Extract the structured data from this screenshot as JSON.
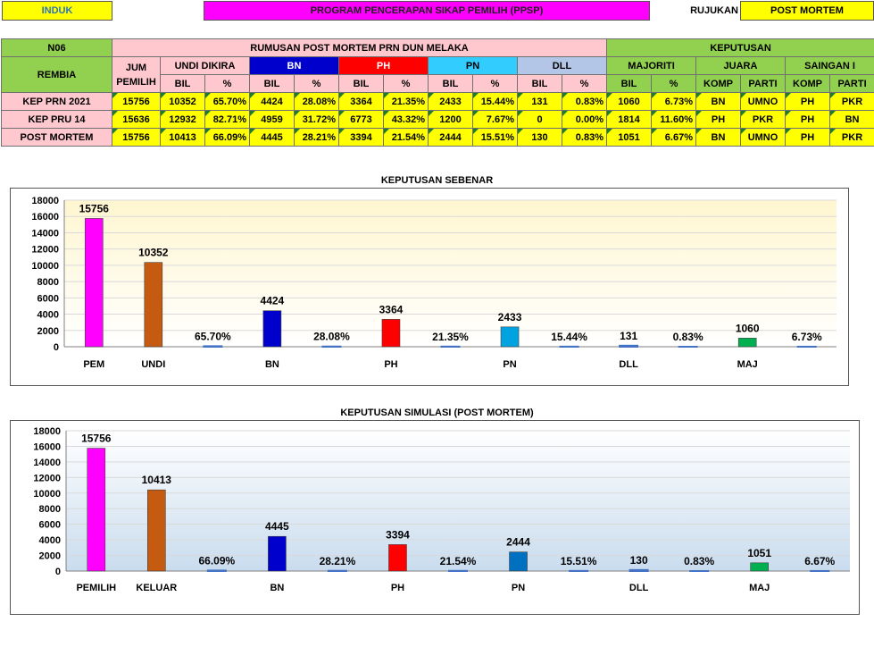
{
  "topbar": {
    "induk_label": "INDUK",
    "program_label": "PROGRAM PENCERAPAN SIKAP PEMILIH (PPSP)",
    "rujukan_label": "RUJUKAN",
    "rujukan_value": "POST MORTEM"
  },
  "table": {
    "code": "N06",
    "seat": "REMBIA",
    "main_header": "RUMUSAN POST MORTEM PRN DUN MELAKA",
    "keputusan_header": "KEPUTUSAN",
    "col_jum": "JUM PEMILIH",
    "col_undi": "UNDI DIKIRA",
    "col_bn": "BN",
    "col_ph": "PH",
    "col_pn": "PN",
    "col_dll": "DLL",
    "col_majoriti": "MAJORITI",
    "col_juara": "JUARA",
    "col_saingan": "SAINGAN I",
    "sub_bil": "BIL",
    "sub_pct": "%",
    "sub_komp": "KOMP",
    "sub_parti": "PARTI",
    "rows": [
      {
        "label": "KEP PRN 2021",
        "jum": "15756",
        "undi_bil": "10352",
        "undi_pct": "65.70%",
        "bn_bil": "4424",
        "bn_pct": "28.08%",
        "ph_bil": "3364",
        "ph_pct": "21.35%",
        "pn_bil": "2433",
        "pn_pct": "15.44%",
        "dll_bil": "131",
        "dll_pct": "0.83%",
        "maj_bil": "1060",
        "maj_pct": "6.73%",
        "juara_komp": "BN",
        "juara_parti": "UMNO",
        "saingan_komp": "PH",
        "saingan_parti": "PKR"
      },
      {
        "label": "KEP PRU 14",
        "jum": "15636",
        "undi_bil": "12932",
        "undi_pct": "82.71%",
        "bn_bil": "4959",
        "bn_pct": "31.72%",
        "ph_bil": "6773",
        "ph_pct": "43.32%",
        "pn_bil": "1200",
        "pn_pct": "7.67%",
        "dll_bil": "0",
        "dll_pct": "0.00%",
        "maj_bil": "1814",
        "maj_pct": "11.60%",
        "juara_komp": "PH",
        "juara_parti": "PKR",
        "saingan_komp": "PH",
        "saingan_parti": "BN"
      },
      {
        "label": "POST MORTEM",
        "jum": "15756",
        "undi_bil": "10413",
        "undi_pct": "66.09%",
        "bn_bil": "4445",
        "bn_pct": "28.21%",
        "ph_bil": "3394",
        "ph_pct": "21.54%",
        "pn_bil": "2444",
        "pn_pct": "15.51%",
        "dll_bil": "130",
        "dll_pct": "0.83%",
        "maj_bil": "1051",
        "maj_pct": "6.67%",
        "juara_komp": "BN",
        "juara_parti": "UMNO",
        "saingan_komp": "PH",
        "saingan_parti": "PKR"
      }
    ]
  },
  "colors": {
    "pemilih": "#ff00ff",
    "undi": "#c55a11",
    "bn": "#0000cc",
    "ph": "#ff0000",
    "pn": "#00a3e0",
    "maj": "#00b050",
    "pct_bar": "#4472c4",
    "chart1_bg_top": "#fff6d0",
    "chart2_bg_top": "#c9dcee"
  },
  "chart_data": [
    {
      "type": "bar",
      "title": "KEPUTUSAN SEBENAR",
      "ylim": [
        0,
        18000
      ],
      "yticks": [
        0,
        2000,
        4000,
        6000,
        8000,
        10000,
        12000,
        14000,
        16000,
        18000
      ],
      "grid": true,
      "categories": [
        "PEM",
        "UNDI",
        "",
        "BN",
        "",
        "PH",
        "",
        "PN",
        "",
        "DLL",
        "",
        "MAJ",
        ""
      ],
      "values": [
        15756,
        10352,
        65.7,
        4424,
        28.08,
        3364,
        21.35,
        2433,
        15.44,
        131,
        0.83,
        1060,
        6.73
      ],
      "data_labels": [
        "15756",
        "10352",
        "65.70%",
        "4424",
        "28.08%",
        "3364",
        "21.35%",
        "2433",
        "15.44%",
        "131",
        "0.83%",
        "1060",
        "6.73%"
      ],
      "bar_colors": [
        "#ff00ff",
        "#c55a11",
        "#4472c4",
        "#0000cc",
        "#4472c4",
        "#ff0000",
        "#4472c4",
        "#00a3e0",
        "#4472c4",
        "#4472c4",
        "#4472c4",
        "#00b050",
        "#4472c4"
      ]
    },
    {
      "type": "bar",
      "title": "KEPUTUSAN SIMULASI (POST MORTEM)",
      "ylim": [
        0,
        18000
      ],
      "yticks": [
        0,
        2000,
        4000,
        6000,
        8000,
        10000,
        12000,
        14000,
        16000,
        18000
      ],
      "grid": true,
      "categories": [
        "PEMILIH",
        "KELUAR",
        "",
        "BN",
        "",
        "PH",
        "",
        "PN",
        "",
        "DLL",
        "",
        "MAJ",
        ""
      ],
      "values": [
        15756,
        10413,
        66.09,
        4445,
        28.21,
        3394,
        21.54,
        2444,
        15.51,
        130,
        0.83,
        1051,
        6.67
      ],
      "data_labels": [
        "15756",
        "10413",
        "66.09%",
        "4445",
        "28.21%",
        "3394",
        "21.54%",
        "2444",
        "15.51%",
        "130",
        "0.83%",
        "1051",
        "6.67%"
      ],
      "bar_colors": [
        "#ff00ff",
        "#c55a11",
        "#4472c4",
        "#0000cc",
        "#4472c4",
        "#ff0000",
        "#4472c4",
        "#0070c0",
        "#4472c4",
        "#4472c4",
        "#4472c4",
        "#00b050",
        "#4472c4"
      ]
    }
  ]
}
